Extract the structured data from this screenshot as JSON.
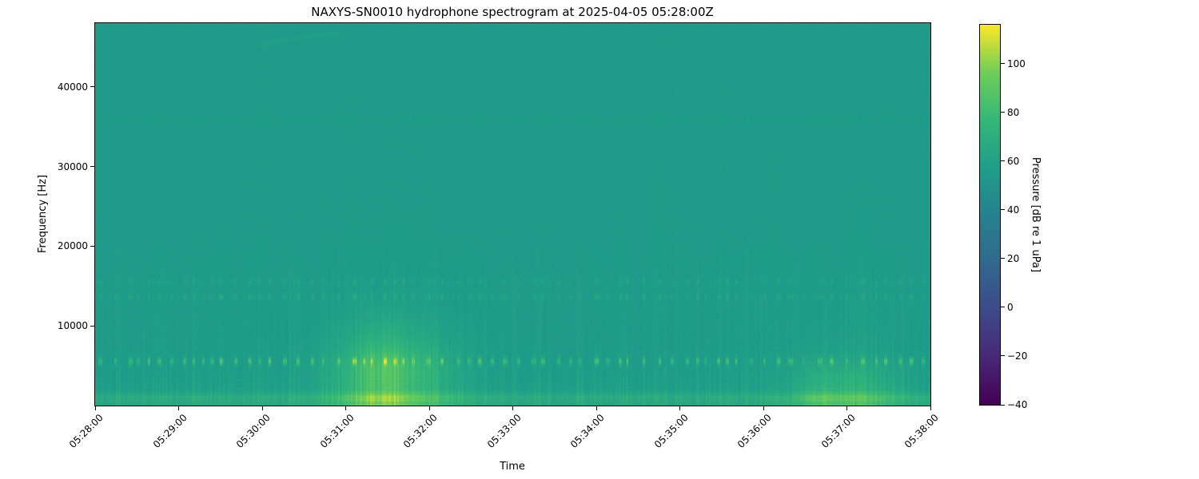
{
  "figure": {
    "background_color": "#ffffff",
    "text_color": "#000000"
  },
  "chart_data": {
    "type": "heatmap",
    "subtype": "spectrogram",
    "title": "NAXYS-SN0010 hydrophone spectrogram at 2025-04-05 05:28:00Z",
    "xlabel": "Time",
    "ylabel": "Frequency [Hz]",
    "x_ticks": [
      "05:28:00",
      "05:29:00",
      "05:30:00",
      "05:31:00",
      "05:32:00",
      "05:33:00",
      "05:34:00",
      "05:35:00",
      "05:36:00",
      "05:37:00",
      "05:38:00"
    ],
    "duration_s": 600,
    "y_ticks": [
      10000,
      20000,
      30000,
      40000
    ],
    "ylim": [
      0,
      48000
    ],
    "grid": false,
    "colormap": "viridis",
    "colorbar": {
      "label": "Pressure [dB re 1 uPa]",
      "ticks": [
        100,
        80,
        60,
        40,
        20,
        0,
        -20,
        -40
      ],
      "vmin": -40,
      "vmax": 116,
      "position": "right",
      "gradient_stops": [
        [
          0,
          "#440154"
        ],
        [
          0.125,
          "#482878"
        ],
        [
          0.25,
          "#3e4a89"
        ],
        [
          0.375,
          "#31688e"
        ],
        [
          0.5,
          "#26828e"
        ],
        [
          0.625,
          "#1f9e89"
        ],
        [
          0.75,
          "#35b779"
        ],
        [
          0.875,
          "#6ece58"
        ],
        [
          1,
          "#fde725"
        ]
      ]
    },
    "background_level_db": 55,
    "noise": {
      "speckle_db": 0.7,
      "speckle_lowfreq_extra_db": 1.1,
      "striation_max_db": 7,
      "striation_freq_scale_hz": 9000
    },
    "features": [
      {
        "name": "ping-train",
        "freq_hz": 5600,
        "bandwidth_hz": 660,
        "min_interval_s": 5.5,
        "max_interval_s": 11.5,
        "peak_db": 86,
        "description": "regular bright echosounder pulses along ~5.6 kHz for the whole record"
      },
      {
        "name": "harmonic-row-1",
        "freq_hz": 13700,
        "relative_level": 0.3
      },
      {
        "name": "harmonic-row-2",
        "freq_hz": 15600,
        "relative_level": 0.22
      },
      {
        "name": "broadband-event-1",
        "time_center": "05:31:32",
        "center_s": 212,
        "sigma_s": 30,
        "peak_db": 90,
        "description": "loud broadband low-frequency event (vessel passage) below ~12 kHz around 05:31"
      },
      {
        "name": "broadband-event-2",
        "time_center": "05:37:01",
        "center_s": 541,
        "sigma_s": 26,
        "peak_db": 78,
        "description": "weaker broadband low-frequency event below ~9 kHz around 05:37"
      },
      {
        "name": "surface-noise-band",
        "freq_hz": 1050,
        "width_hz": 450,
        "boost_db": 8,
        "description": "bright band of continuous noise near the bottom of the plot"
      },
      {
        "name": "faint-arc",
        "start_s": 112,
        "end_s": 178,
        "f_start_hz": 44800,
        "f_end_hz": 46900,
        "boost_db": 3.5,
        "description": "faint rising arc near the top left"
      },
      {
        "name": "faint-horizontal-line",
        "freq_hz": 36000,
        "boost_db": 1.2
      }
    ]
  }
}
